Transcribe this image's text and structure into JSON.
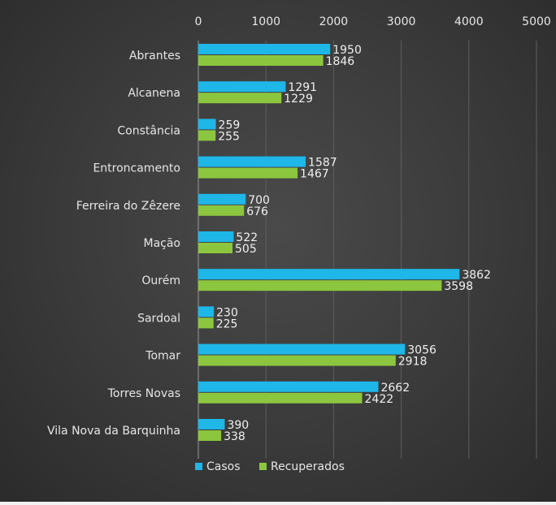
{
  "chart_data": {
    "type": "bar",
    "orientation": "horizontal",
    "x_axis_position": "top",
    "grid": true,
    "legend_position": "bottom",
    "xlim": [
      0,
      5000
    ],
    "ticks": [
      0,
      1000,
      2000,
      3000,
      4000,
      5000
    ],
    "categories": [
      "Abrantes",
      "Alcanena",
      "Constância",
      "Entroncamento",
      "Ferreira do Zêzere",
      "Mação",
      "Ourém",
      "Sardoal",
      "Tomar",
      "Torres Novas",
      "Vila Nova da Barquinha"
    ],
    "series": [
      {
        "name": "Casos",
        "color": "#1fb6e8",
        "values": [
          1950,
          1291,
          259,
          1587,
          700,
          522,
          3862,
          230,
          3056,
          2662,
          390
        ]
      },
      {
        "name": "Recuperados",
        "color": "#8cc63f",
        "values": [
          1846,
          1229,
          255,
          1467,
          676,
          505,
          3598,
          225,
          2918,
          2422,
          338
        ]
      }
    ]
  }
}
